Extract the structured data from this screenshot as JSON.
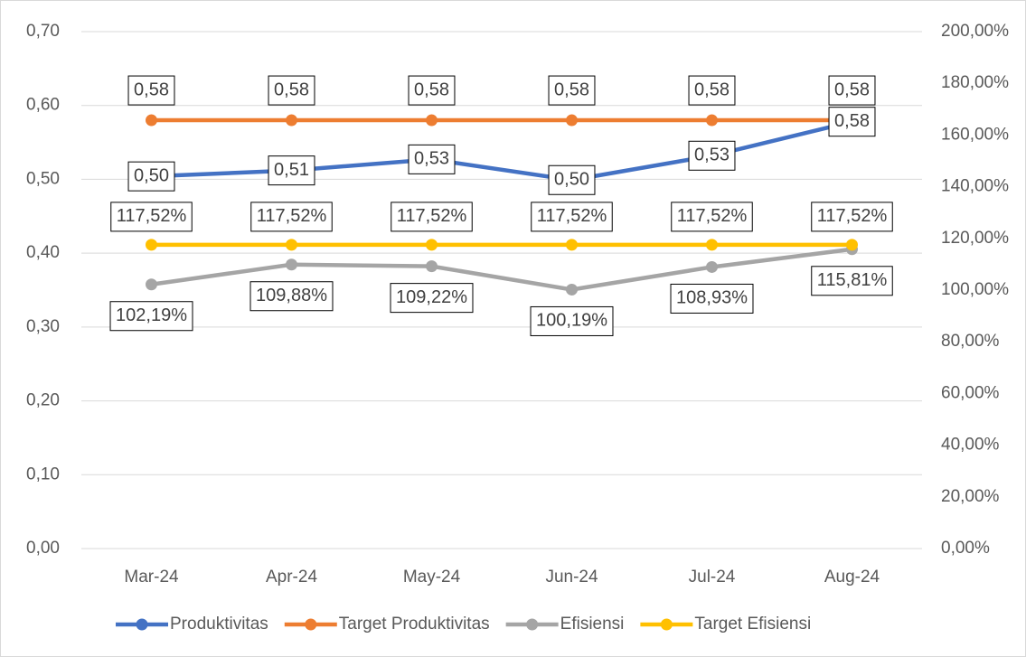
{
  "chart_data": {
    "type": "line",
    "categories": [
      "Mar-24",
      "Apr-24",
      "May-24",
      "Jun-24",
      "Jul-24",
      "Aug-24"
    ],
    "series": [
      {
        "name": "Produktivitas",
        "color": "#4472c4",
        "values": [
          0.504,
          0.512,
          0.527,
          0.499,
          0.532,
          0.578
        ],
        "value_labels": [
          "0,50",
          "0,51",
          "0,53",
          "0,50",
          "0,53",
          "0,58"
        ]
      },
      {
        "name": "Target Produktivitas",
        "color": "#ed7d31",
        "values": [
          0.58,
          0.58,
          0.58,
          0.58,
          0.58,
          0.58
        ],
        "value_labels": [
          "0,58",
          "0,58",
          "0,58",
          "0,58",
          "0,58",
          "0,58"
        ]
      },
      {
        "name": "Efisiensi",
        "color": "#a5a5a5",
        "axis": "y2",
        "values": [
          102.19,
          109.88,
          109.22,
          100.19,
          108.93,
          115.81
        ],
        "value_labels": [
          "102,19%",
          "109,88%",
          "109,22%",
          "100,19%",
          "108,93%",
          "115,81%"
        ]
      },
      {
        "name": "Target Efisiensi",
        "color": "#ffc000",
        "axis": "y2",
        "values": [
          117.52,
          117.52,
          117.52,
          117.52,
          117.52,
          117.52
        ],
        "value_labels": [
          "117,52%",
          "117,52%",
          "117,52%",
          "117,52%",
          "117,52%",
          "117,52%"
        ]
      }
    ],
    "ylim": [
      0,
      0.7
    ],
    "yticks": [
      {
        "value": 0,
        "label": "0,00"
      },
      {
        "value": 0.1,
        "label": "0,10"
      },
      {
        "value": 0.2,
        "label": "0,20"
      },
      {
        "value": 0.3,
        "label": "0,30"
      },
      {
        "value": 0.4,
        "label": "0,40"
      },
      {
        "value": 0.5,
        "label": "0,50"
      },
      {
        "value": 0.6,
        "label": "0,60"
      },
      {
        "value": 0.7,
        "label": "0,70"
      }
    ],
    "y2lim": [
      0,
      200
    ],
    "y2ticks": [
      {
        "value": 0,
        "label": "0,00%"
      },
      {
        "value": 20,
        "label": "20,00%"
      },
      {
        "value": 40,
        "label": "40,00%"
      },
      {
        "value": 60,
        "label": "60,00%"
      },
      {
        "value": 80,
        "label": "80,00%"
      },
      {
        "value": 100,
        "label": "100,00%"
      },
      {
        "value": 120,
        "label": "120,00%"
      },
      {
        "value": 140,
        "label": "140,00%"
      },
      {
        "value": 160,
        "label": "160,00%"
      },
      {
        "value": 180,
        "label": "180,00%"
      },
      {
        "value": 200,
        "label": "200,00%"
      }
    ],
    "grid": true,
    "legend": "bottom"
  }
}
